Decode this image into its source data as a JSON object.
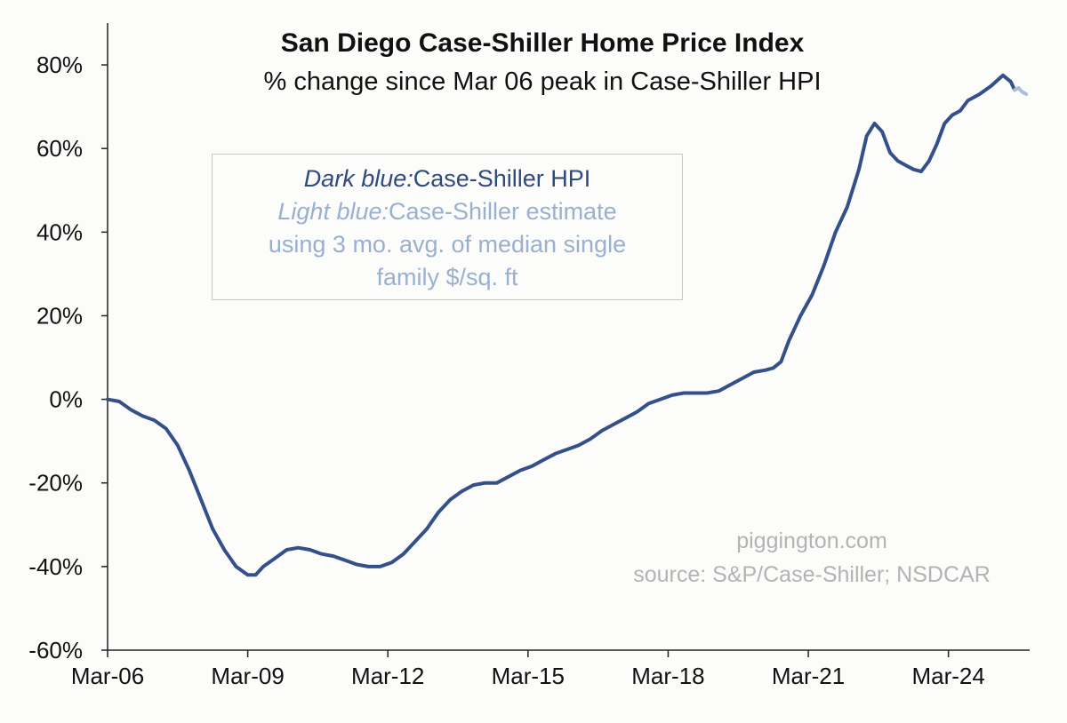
{
  "chart_data": {
    "type": "line",
    "title": "San Diego Case-Shiller Home Price Index",
    "subtitle": "% change since Mar 06 peak in Case-Shiller HPI",
    "xlabel": "",
    "ylabel": "",
    "ylim": [
      -60,
      90
    ],
    "yticks": [
      80,
      60,
      40,
      20,
      0,
      -20,
      -40,
      -60
    ],
    "ytick_labels": [
      "80%",
      "60%",
      "40%",
      "20%",
      "0%",
      "-20%",
      "-40%",
      "-60%"
    ],
    "xlim": [
      0,
      233
    ],
    "xticks": [
      0,
      36,
      72,
      108,
      144,
      180,
      216
    ],
    "xtick_labels": [
      "Mar-06",
      "Mar-09",
      "Mar-12",
      "Mar-15",
      "Mar-18",
      "Mar-21",
      "Mar-24"
    ],
    "x_unit": "months since Mar 2006",
    "series": [
      {
        "name": "Case-Shiller HPI",
        "color": "#34508a",
        "points": [
          [
            0,
            0
          ],
          [
            3,
            -0.5
          ],
          [
            6,
            -2.5
          ],
          [
            9,
            -4
          ],
          [
            12,
            -5
          ],
          [
            15,
            -7
          ],
          [
            18,
            -11
          ],
          [
            21,
            -17
          ],
          [
            24,
            -24
          ],
          [
            27,
            -31
          ],
          [
            30,
            -36
          ],
          [
            33,
            -40
          ],
          [
            36,
            -42
          ],
          [
            38,
            -42
          ],
          [
            40,
            -40
          ],
          [
            43,
            -38
          ],
          [
            46,
            -36
          ],
          [
            49,
            -35.5
          ],
          [
            52,
            -36
          ],
          [
            55,
            -37
          ],
          [
            58,
            -37.5
          ],
          [
            61,
            -38.5
          ],
          [
            64,
            -39.5
          ],
          [
            67,
            -40
          ],
          [
            70,
            -40
          ],
          [
            73,
            -39
          ],
          [
            76,
            -37
          ],
          [
            79,
            -34
          ],
          [
            82,
            -31
          ],
          [
            85,
            -27
          ],
          [
            88,
            -24
          ],
          [
            91,
            -22
          ],
          [
            94,
            -20.5
          ],
          [
            97,
            -20
          ],
          [
            100,
            -20
          ],
          [
            103,
            -18.5
          ],
          [
            106,
            -17
          ],
          [
            109,
            -16
          ],
          [
            112,
            -14.5
          ],
          [
            115,
            -13
          ],
          [
            118,
            -12
          ],
          [
            121,
            -11
          ],
          [
            124,
            -9.5
          ],
          [
            127,
            -7.5
          ],
          [
            130,
            -6
          ],
          [
            133,
            -4.5
          ],
          [
            136,
            -3
          ],
          [
            139,
            -1
          ],
          [
            142,
            0
          ],
          [
            145,
            1
          ],
          [
            148,
            1.5
          ],
          [
            151,
            1.5
          ],
          [
            154,
            1.5
          ],
          [
            157,
            2
          ],
          [
            160,
            3.5
          ],
          [
            163,
            5
          ],
          [
            166,
            6.5
          ],
          [
            169,
            7
          ],
          [
            171,
            7.5
          ],
          [
            173,
            9
          ],
          [
            175,
            14
          ],
          [
            178,
            20
          ],
          [
            181,
            25
          ],
          [
            184,
            32
          ],
          [
            187,
            40
          ],
          [
            190,
            46
          ],
          [
            193,
            55
          ],
          [
            195,
            63
          ],
          [
            197,
            66
          ],
          [
            199,
            64
          ],
          [
            201,
            59
          ],
          [
            203,
            57
          ],
          [
            205,
            56
          ],
          [
            207,
            55
          ],
          [
            209,
            54.5
          ],
          [
            211,
            57
          ],
          [
            213,
            61
          ],
          [
            215,
            66
          ],
          [
            217,
            68
          ],
          [
            219,
            69
          ],
          [
            221,
            71.5
          ],
          [
            224,
            73
          ],
          [
            227,
            75
          ],
          [
            230,
            77.5
          ],
          [
            232,
            76
          ],
          [
            233,
            74
          ]
        ]
      },
      {
        "name": "Case-Shiller estimate using 3 mo. avg. of median single family $/sq. ft",
        "color": "#a9bfdd",
        "points": [
          [
            233,
            74
          ],
          [
            234,
            74.5
          ],
          [
            235,
            73.5
          ],
          [
            236,
            73
          ]
        ]
      }
    ],
    "legend": {
      "dark_label": "Dark blue:",
      "dark_text": "Case-Shiller HPI",
      "light_label": "Light blue:",
      "light_text_1": "Case-Shiller estimate",
      "light_text_2": "using 3 mo. avg. of median single",
      "light_text_3": "family $/sq. ft"
    },
    "annotations": [
      "piggington.com",
      "source: S&P/Case-Shiller; NSDCAR"
    ],
    "grid": false
  }
}
